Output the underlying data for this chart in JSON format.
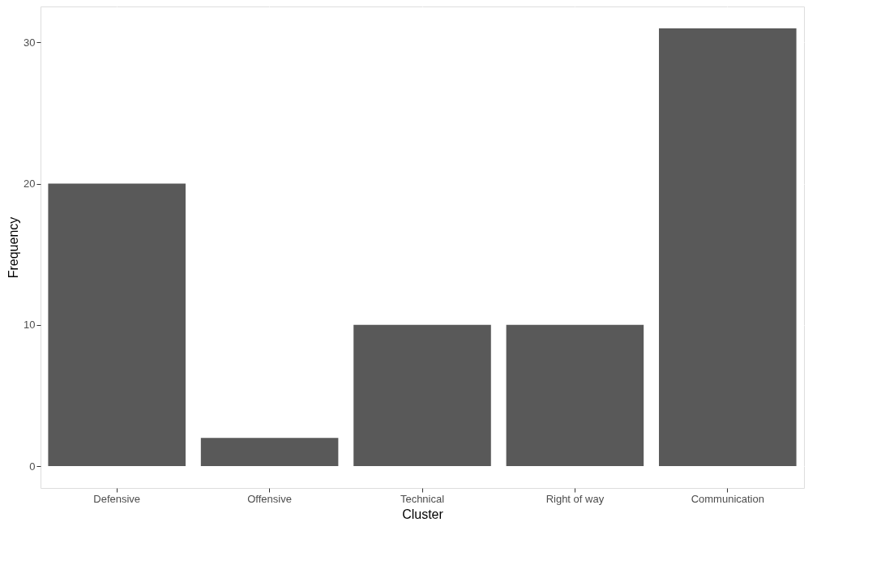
{
  "chart_data": {
    "type": "bar",
    "xlabel": "Cluster",
    "ylabel": "Frequency",
    "categories": [
      "Defensive",
      "Offensive",
      "Technical",
      "Right of way",
      "Communication"
    ],
    "values": [
      20,
      2,
      10,
      10,
      31
    ],
    "color": "#595959",
    "ylim": [
      -1.55,
      32.55
    ],
    "yticks": [
      0,
      10,
      20,
      30
    ],
    "grid": true
  }
}
